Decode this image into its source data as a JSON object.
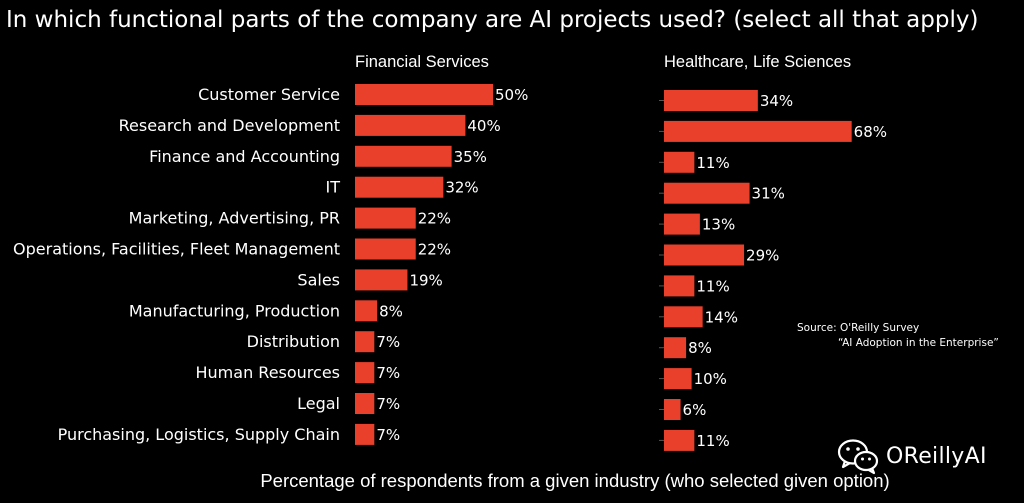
{
  "chart_data": {
    "type": "bar",
    "title": "In which functional parts of the company are AI projects used?  (select all that apply)",
    "xlabel": "Percentage of respondents from a given industry (who selected given option)",
    "categories": [
      "Customer Service",
      "Research and Development",
      "Finance and Accounting",
      "IT",
      "Marketing, Advertising, PR",
      "Operations, Facilities, Fleet Management",
      "Sales",
      "Manufacturing, Production",
      "Distribution",
      "Human Resources",
      "Legal",
      "Purchasing, Logistics, Supply Chain"
    ],
    "series": [
      {
        "name": "Financial Services",
        "values": [
          50,
          40,
          35,
          32,
          22,
          22,
          19,
          8,
          7,
          7,
          7,
          7
        ]
      },
      {
        "name": "Healthcare, Life Sciences",
        "values": [
          34,
          68,
          11,
          31,
          13,
          29,
          11,
          14,
          8,
          10,
          6,
          11
        ]
      }
    ],
    "value_suffix": "%",
    "bar_color": "#e8402a",
    "source_line1": "Source:   O'Reilly Survey",
    "source_line2": "“AI Adoption in the Enterprise”"
  },
  "watermark": {
    "icon": "wechat-icon",
    "text": "OReillyAI"
  }
}
